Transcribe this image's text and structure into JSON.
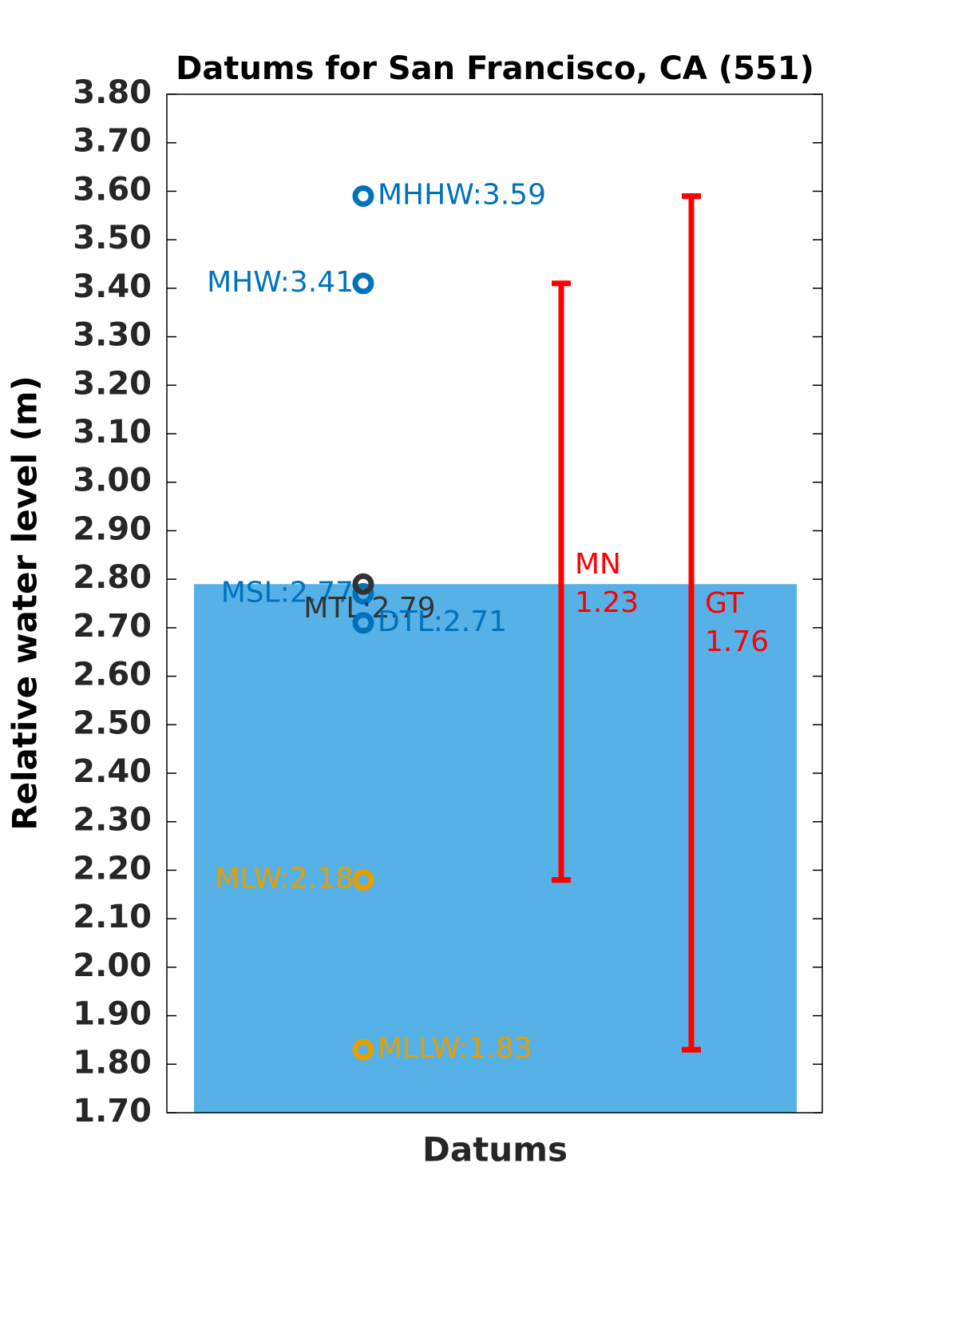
{
  "chart_data": {
    "type": "datum",
    "title": "Datums for San Francisco, CA (551)",
    "ylabel": "Relative water level (m)",
    "xlabel": "Datums",
    "ylim": [
      1.7,
      3.8
    ],
    "yticks": [
      {
        "value": 1.7,
        "label": "1.70"
      },
      {
        "value": 1.8,
        "label": "1.80"
      },
      {
        "value": 1.9,
        "label": "1.90"
      },
      {
        "value": 2.0,
        "label": "2.00"
      },
      {
        "value": 2.1,
        "label": "2.10"
      },
      {
        "value": 2.2,
        "label": "2.20"
      },
      {
        "value": 2.3,
        "label": "2.30"
      },
      {
        "value": 2.4,
        "label": "2.40"
      },
      {
        "value": 2.5,
        "label": "2.50"
      },
      {
        "value": 2.6,
        "label": "2.60"
      },
      {
        "value": 2.7,
        "label": "2.70"
      },
      {
        "value": 2.8,
        "label": "2.80"
      },
      {
        "value": 2.9,
        "label": "2.90"
      },
      {
        "value": 3.0,
        "label": "3.00"
      },
      {
        "value": 3.1,
        "label": "3.10"
      },
      {
        "value": 3.2,
        "label": "3.20"
      },
      {
        "value": 3.3,
        "label": "3.30"
      },
      {
        "value": 3.4,
        "label": "3.40"
      },
      {
        "value": 3.5,
        "label": "3.50"
      },
      {
        "value": 3.6,
        "label": "3.60"
      },
      {
        "value": 3.7,
        "label": "3.70"
      },
      {
        "value": 3.8,
        "label": "3.80"
      }
    ],
    "fill_color": "#56b1e6",
    "points": {
      "values": [
        3.59,
        3.41,
        2.77,
        2.79,
        2.71,
        2.18,
        1.83
      ],
      "value_labels": [
        "MHHW:3.59",
        "MHW:3.41",
        "MSL:2.77",
        "MTL:2.79",
        "DTL:2.71",
        "MLW:2.18",
        "MLLW:1.83"
      ],
      "colors": [
        "#0072bd",
        "#0072bd",
        "#0072bd",
        "#333333",
        "#0072bd",
        "#e69f00",
        "#e69f00"
      ]
    },
    "ranges": [
      {
        "name": "MN",
        "value": 1.23,
        "low": 2.18,
        "high": 3.41,
        "color": "#ff0000"
      },
      {
        "name": "GT",
        "value": 1.76,
        "low": 1.83,
        "high": 3.59,
        "color": "#ff0000"
      }
    ]
  }
}
